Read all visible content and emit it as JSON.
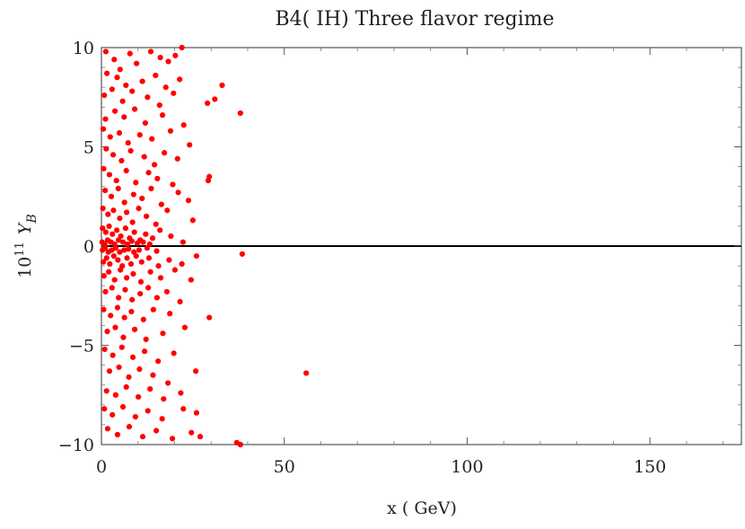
{
  "chart_data": {
    "type": "scatter",
    "title": "B4( IH) Three flavor regime",
    "xlabel": "x ( GeV)",
    "ylabel_prefix": "10",
    "ylabel_exp": "11",
    "ylabel_var": "Y",
    "ylabel_sub": "B",
    "xlim": [
      0,
      175
    ],
    "ylim": [
      -10,
      10
    ],
    "x_ticks": [
      0,
      50,
      100,
      150
    ],
    "x_tick_labels": [
      "0",
      "50",
      "100",
      "150"
    ],
    "y_ticks": [
      -10,
      -5,
      0,
      5,
      10
    ],
    "y_tick_labels": [
      "−10",
      "−5",
      "0",
      "5",
      "10"
    ],
    "zero_line": true,
    "grid": false,
    "point_color": "#ff0000",
    "series": [
      {
        "points": [
          [
            1.2,
            9.8
          ],
          [
            3.5,
            9.4
          ],
          [
            5.1,
            8.9
          ],
          [
            7.8,
            9.7
          ],
          [
            9.6,
            9.2
          ],
          [
            13.5,
            9.8
          ],
          [
            16.1,
            9.5
          ],
          [
            18.3,
            9.3
          ],
          [
            20.2,
            9.6
          ],
          [
            22.0,
            10.0
          ],
          [
            1.5,
            8.7
          ],
          [
            4.3,
            8.5
          ],
          [
            6.7,
            8.1
          ],
          [
            11.2,
            8.3
          ],
          [
            14.8,
            8.6
          ],
          [
            17.6,
            8.0
          ],
          [
            21.4,
            8.4
          ],
          [
            33.0,
            8.1
          ],
          [
            0.8,
            7.6
          ],
          [
            2.9,
            7.9
          ],
          [
            5.8,
            7.3
          ],
          [
            8.4,
            7.8
          ],
          [
            12.6,
            7.5
          ],
          [
            15.9,
            7.1
          ],
          [
            19.7,
            7.7
          ],
          [
            29.0,
            7.2
          ],
          [
            31.0,
            7.4
          ],
          [
            38.0,
            6.7
          ],
          [
            1.1,
            6.4
          ],
          [
            3.7,
            6.8
          ],
          [
            6.2,
            6.5
          ],
          [
            9.1,
            6.9
          ],
          [
            12.0,
            6.2
          ],
          [
            16.7,
            6.6
          ],
          [
            22.5,
            6.1
          ],
          [
            0.5,
            5.9
          ],
          [
            2.4,
            5.5
          ],
          [
            4.9,
            5.7
          ],
          [
            7.3,
            5.2
          ],
          [
            10.5,
            5.6
          ],
          [
            13.8,
            5.4
          ],
          [
            18.9,
            5.8
          ],
          [
            24.1,
            5.1
          ],
          [
            1.3,
            4.9
          ],
          [
            3.2,
            4.6
          ],
          [
            5.5,
            4.3
          ],
          [
            8.0,
            4.8
          ],
          [
            11.7,
            4.5
          ],
          [
            14.5,
            4.1
          ],
          [
            17.2,
            4.7
          ],
          [
            20.8,
            4.4
          ],
          [
            0.6,
            3.9
          ],
          [
            2.2,
            3.6
          ],
          [
            4.1,
            3.3
          ],
          [
            6.8,
            3.8
          ],
          [
            9.4,
            3.2
          ],
          [
            12.9,
            3.7
          ],
          [
            15.3,
            3.4
          ],
          [
            19.5,
            3.1
          ],
          [
            29.5,
            3.5
          ],
          [
            29.2,
            3.3
          ],
          [
            1.0,
            2.8
          ],
          [
            2.7,
            2.5
          ],
          [
            4.6,
            2.9
          ],
          [
            6.3,
            2.2
          ],
          [
            8.8,
            2.6
          ],
          [
            11.1,
            2.4
          ],
          [
            13.6,
            2.9
          ],
          [
            16.4,
            2.1
          ],
          [
            21.0,
            2.7
          ],
          [
            23.8,
            2.3
          ],
          [
            0.4,
            1.9
          ],
          [
            1.8,
            1.6
          ],
          [
            3.3,
            1.8
          ],
          [
            5.0,
            1.4
          ],
          [
            6.9,
            1.7
          ],
          [
            8.5,
            1.2
          ],
          [
            10.2,
            1.9
          ],
          [
            12.3,
            1.5
          ],
          [
            14.9,
            1.1
          ],
          [
            18.0,
            1.8
          ],
          [
            25.0,
            1.3
          ],
          [
            0.3,
            0.9
          ],
          [
            1.2,
            0.7
          ],
          [
            2.1,
            1.0
          ],
          [
            3.0,
            0.6
          ],
          [
            4.2,
            0.8
          ],
          [
            5.3,
            0.5
          ],
          [
            6.6,
            0.9
          ],
          [
            7.7,
            0.4
          ],
          [
            9.0,
            0.7
          ],
          [
            10.6,
            0.3
          ],
          [
            12.1,
            0.6
          ],
          [
            14.0,
            0.4
          ],
          [
            16.0,
            0.8
          ],
          [
            19.0,
            0.5
          ],
          [
            22.3,
            0.2
          ],
          [
            0.2,
            0.2
          ],
          [
            0.9,
            0.1
          ],
          [
            1.7,
            0.3
          ],
          [
            2.6,
            0.2
          ],
          [
            3.6,
            0.1
          ],
          [
            4.7,
            0.3
          ],
          [
            5.9,
            0.2
          ],
          [
            7.1,
            0.1
          ],
          [
            8.3,
            0.25
          ],
          [
            9.8,
            0.15
          ],
          [
            11.4,
            0.2
          ],
          [
            13.2,
            0.1
          ],
          [
            0.3,
            -0.2
          ],
          [
            1.0,
            -0.1
          ],
          [
            1.9,
            -0.3
          ],
          [
            2.8,
            -0.2
          ],
          [
            3.9,
            -0.1
          ],
          [
            5.0,
            -0.3
          ],
          [
            6.2,
            -0.2
          ],
          [
            7.4,
            -0.15
          ],
          [
            8.9,
            -0.3
          ],
          [
            10.3,
            -0.2
          ],
          [
            12.5,
            -0.1
          ],
          [
            15.1,
            -0.25
          ],
          [
            38.5,
            -0.4
          ],
          [
            0.5,
            -0.8
          ],
          [
            1.4,
            -0.6
          ],
          [
            2.3,
            -0.9
          ],
          [
            3.4,
            -0.5
          ],
          [
            4.5,
            -0.7
          ],
          [
            5.7,
            -1.0
          ],
          [
            7.0,
            -0.6
          ],
          [
            8.1,
            -0.9
          ],
          [
            9.5,
            -0.5
          ],
          [
            11.0,
            -0.8
          ],
          [
            13.0,
            -0.6
          ],
          [
            15.6,
            -1.0
          ],
          [
            18.5,
            -0.7
          ],
          [
            22.0,
            -0.9
          ],
          [
            26.0,
            -0.5
          ],
          [
            0.7,
            -1.5
          ],
          [
            2.0,
            -1.3
          ],
          [
            3.6,
            -1.7
          ],
          [
            5.2,
            -1.2
          ],
          [
            6.9,
            -1.6
          ],
          [
            8.7,
            -1.4
          ],
          [
            10.8,
            -1.8
          ],
          [
            13.4,
            -1.3
          ],
          [
            16.2,
            -1.6
          ],
          [
            20.1,
            -1.2
          ],
          [
            24.5,
            -1.7
          ],
          [
            1.1,
            -2.3
          ],
          [
            2.9,
            -2.1
          ],
          [
            4.7,
            -2.6
          ],
          [
            6.5,
            -2.2
          ],
          [
            8.4,
            -2.7
          ],
          [
            10.6,
            -2.4
          ],
          [
            12.8,
            -2.1
          ],
          [
            15.2,
            -2.6
          ],
          [
            17.9,
            -2.3
          ],
          [
            21.5,
            -2.8
          ],
          [
            0.6,
            -3.2
          ],
          [
            2.5,
            -3.5
          ],
          [
            4.4,
            -3.1
          ],
          [
            6.3,
            -3.6
          ],
          [
            8.2,
            -3.3
          ],
          [
            11.5,
            -3.7
          ],
          [
            14.2,
            -3.2
          ],
          [
            18.7,
            -3.4
          ],
          [
            29.5,
            -3.6
          ],
          [
            1.6,
            -4.3
          ],
          [
            3.8,
            -4.1
          ],
          [
            6.0,
            -4.6
          ],
          [
            9.1,
            -4.2
          ],
          [
            12.2,
            -4.7
          ],
          [
            16.8,
            -4.4
          ],
          [
            22.8,
            -4.1
          ],
          [
            0.9,
            -5.2
          ],
          [
            3.1,
            -5.5
          ],
          [
            5.6,
            -5.1
          ],
          [
            8.6,
            -5.6
          ],
          [
            11.8,
            -5.3
          ],
          [
            15.5,
            -5.8
          ],
          [
            19.8,
            -5.4
          ],
          [
            2.2,
            -6.3
          ],
          [
            4.8,
            -6.1
          ],
          [
            7.5,
            -6.6
          ],
          [
            10.4,
            -6.2
          ],
          [
            14.1,
            -6.5
          ],
          [
            18.2,
            -6.9
          ],
          [
            25.8,
            -6.3
          ],
          [
            56.0,
            -6.4
          ],
          [
            1.4,
            -7.3
          ],
          [
            3.9,
            -7.5
          ],
          [
            6.8,
            -7.1
          ],
          [
            10.1,
            -7.6
          ],
          [
            13.3,
            -7.2
          ],
          [
            17.0,
            -7.7
          ],
          [
            21.7,
            -7.4
          ],
          [
            0.8,
            -8.2
          ],
          [
            3.0,
            -8.5
          ],
          [
            5.9,
            -8.1
          ],
          [
            9.3,
            -8.6
          ],
          [
            12.7,
            -8.3
          ],
          [
            16.6,
            -8.7
          ],
          [
            22.4,
            -8.2
          ],
          [
            26.0,
            -8.4
          ],
          [
            1.7,
            -9.2
          ],
          [
            4.4,
            -9.5
          ],
          [
            7.6,
            -9.1
          ],
          [
            11.3,
            -9.6
          ],
          [
            15.0,
            -9.3
          ],
          [
            19.4,
            -9.7
          ],
          [
            24.6,
            -9.4
          ],
          [
            27.0,
            -9.6
          ],
          [
            37.0,
            -9.9
          ],
          [
            38.0,
            -10.0
          ]
        ]
      }
    ]
  }
}
